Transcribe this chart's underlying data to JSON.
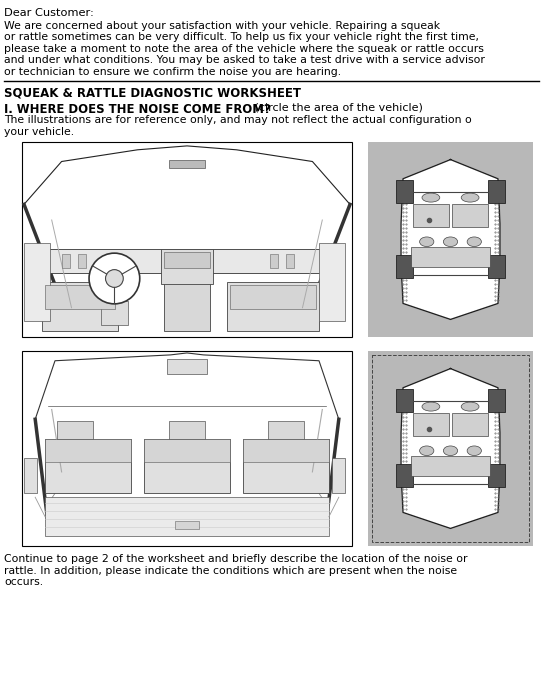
{
  "dear_customer": "Dear Customer:",
  "intro_text": [
    "We are concerned about your satisfaction with your vehicle. Repairing a squeak",
    "or rattle sometimes can be very difficult. To help us fix your vehicle right the first time,",
    "please take a moment to note the area of the vehicle where the squeak or rattle occurs",
    "and under what conditions. You may be asked to take a test drive with a service advisor",
    "or technician to ensure we confirm the noise you are hearing."
  ],
  "worksheet_title": "SQUEAK & RATTLE DIAGNOSTIC WORKSHEET",
  "section_bold": "I. WHERE DOES THE NOISE COME FROM?",
  "section_normal": " (circle the area of the vehicle)",
  "ref_line1": "The illustrations are for reference only, and may not reflect the actual configuration o",
  "ref_line2": "your vehicle.",
  "footer": [
    "Continue to page 2 of the worksheet and briefly describe the location of the noise or",
    "rattle. In addition, please indicate the conditions which are present when the noise",
    "occurs."
  ],
  "bg": "#ffffff",
  "fg": "#000000"
}
